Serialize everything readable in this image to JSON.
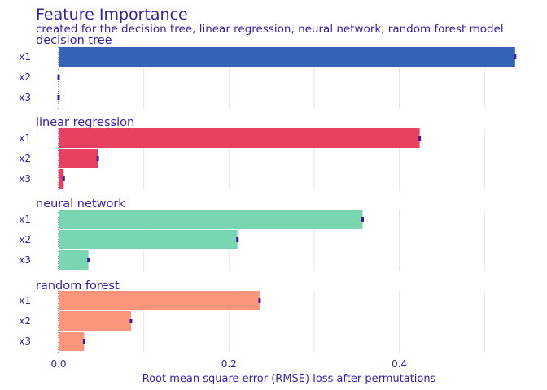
{
  "chart_data": {
    "type": "bar",
    "orientation": "horizontal",
    "title": "Feature Importance",
    "subtitle": "created for the decision tree, linear regression, neural network, random forest model",
    "xlabel": "Root mean square error (RMSE) loss after permutations",
    "ylabel": "",
    "xlim": [
      0,
      0.54
    ],
    "xticks": [
      0.0,
      0.2,
      0.4
    ],
    "xtick_labels": [
      "0.0",
      "0.2",
      "0.4"
    ],
    "grid": true,
    "categories": [
      "x1",
      "x2",
      "x3"
    ],
    "panels": [
      {
        "name": "decision tree",
        "color": "#3563b5",
        "values": [
          0.536,
          0.0,
          0.0
        ]
      },
      {
        "name": "linear regression",
        "color": "#e8405f",
        "values": [
          0.424,
          0.046,
          0.006
        ]
      },
      {
        "name": "neural network",
        "color": "#7ad6b0",
        "values": [
          0.357,
          0.21,
          0.035
        ]
      },
      {
        "name": "random forest",
        "color": "#fd957a",
        "values": [
          0.236,
          0.085,
          0.03
        ]
      }
    ],
    "marker_color": "#371ea3"
  }
}
